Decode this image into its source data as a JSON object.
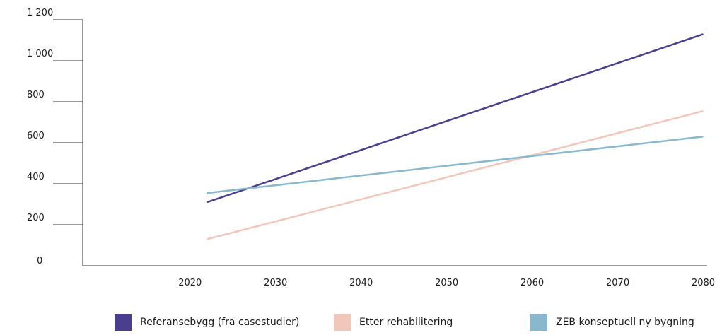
{
  "chart_data": {
    "type": "line",
    "title": "",
    "xlabel": "",
    "ylabel": "",
    "xlim": [
      2012,
      2085
    ],
    "ylim": [
      0,
      1200
    ],
    "x_ticks": [
      2020,
      2030,
      2040,
      2050,
      2060,
      2070,
      2080
    ],
    "x_tick_labels": [
      "2020",
      "2030",
      "2040",
      "2050",
      "2060",
      "2070",
      "2080"
    ],
    "y_ticks": [
      0,
      200,
      400,
      600,
      800,
      1000,
      1200
    ],
    "y_tick_labels": [
      "0",
      "200",
      "400",
      "600",
      "800",
      "1 000",
      "1 200"
    ],
    "grid": false,
    "legend_position": "bottom",
    "series": [
      {
        "name": "Referansebygg (fra casestudier)",
        "color": "#4a3f8f",
        "x": [
          2022,
          2080
        ],
        "y": [
          310,
          1130
        ]
      },
      {
        "name": "Etter rehabilitering",
        "color": "#f2c7bb",
        "x": [
          2022,
          2080
        ],
        "y": [
          130,
          755
        ]
      },
      {
        "name": "ZEB konseptuell ny bygning",
        "color": "#89b8ce",
        "x": [
          2022,
          2080
        ],
        "y": [
          355,
          630
        ]
      }
    ]
  }
}
